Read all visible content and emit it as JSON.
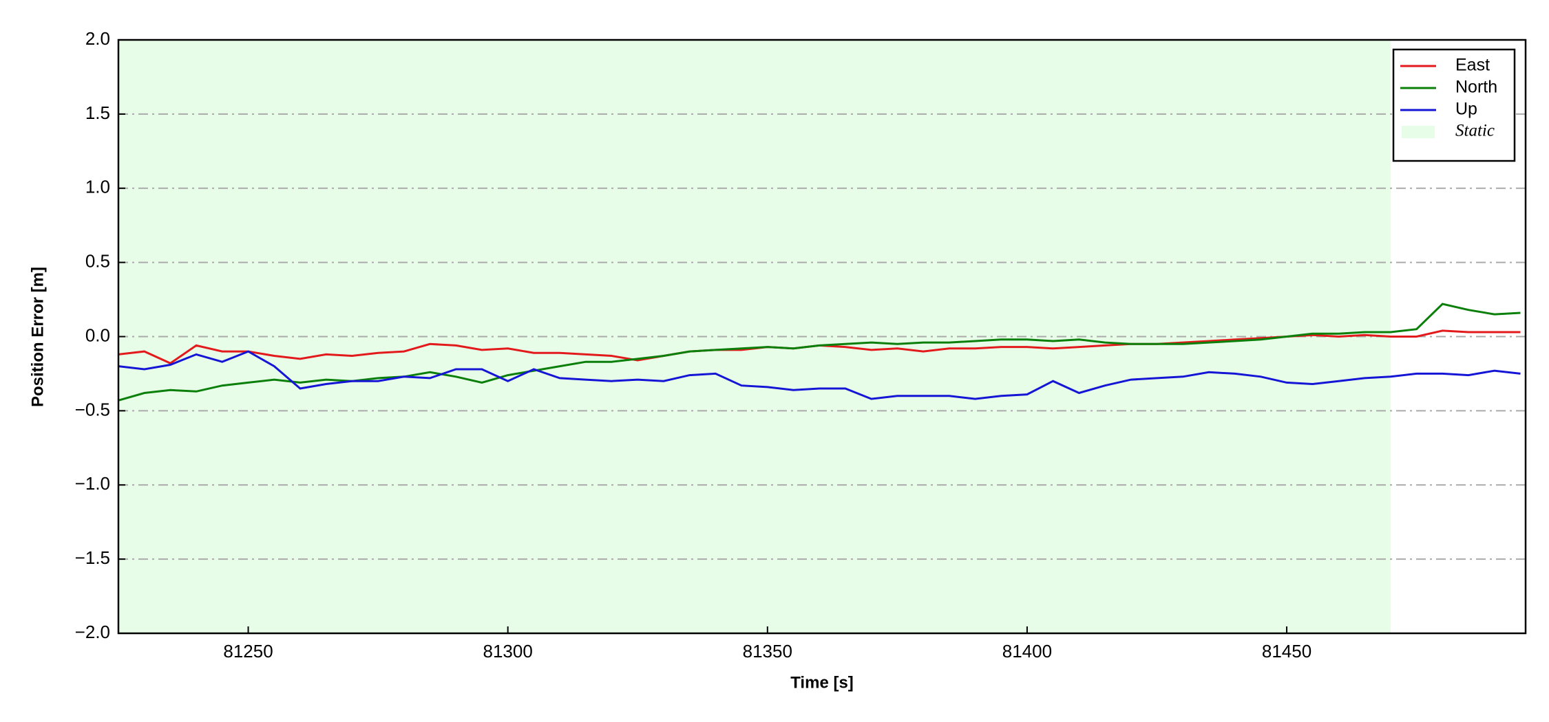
{
  "chart_data": {
    "type": "line",
    "xlabel": "Time [s]",
    "ylabel": "Position Error [m]",
    "x": [
      81225,
      81230,
      81235,
      81240,
      81245,
      81250,
      81255,
      81260,
      81265,
      81270,
      81275,
      81280,
      81285,
      81290,
      81295,
      81300,
      81305,
      81310,
      81315,
      81320,
      81325,
      81330,
      81335,
      81340,
      81345,
      81350,
      81355,
      81360,
      81365,
      81370,
      81375,
      81380,
      81385,
      81390,
      81395,
      81400,
      81405,
      81410,
      81415,
      81420,
      81425,
      81430,
      81435,
      81440,
      81445,
      81450,
      81455,
      81460,
      81465,
      81470,
      81475,
      81480,
      81485,
      81490,
      81495
    ],
    "series": [
      {
        "name": "East",
        "color": "#e31a1c",
        "values": [
          -0.12,
          -0.1,
          -0.18,
          -0.06,
          -0.1,
          -0.1,
          -0.13,
          -0.15,
          -0.12,
          -0.13,
          -0.11,
          -0.1,
          -0.05,
          -0.06,
          -0.09,
          -0.08,
          -0.11,
          -0.11,
          -0.12,
          -0.13,
          -0.16,
          -0.13,
          -0.1,
          -0.09,
          -0.09,
          -0.07,
          -0.08,
          -0.06,
          -0.07,
          -0.09,
          -0.08,
          -0.1,
          -0.08,
          -0.08,
          -0.07,
          -0.07,
          -0.08,
          -0.07,
          -0.06,
          -0.05,
          -0.05,
          -0.04,
          -0.03,
          -0.02,
          -0.01,
          0,
          0.01,
          0,
          0.01,
          0,
          0,
          0.04,
          0.03,
          0.03,
          0.03
        ]
      },
      {
        "name": "North",
        "color": "#0a7f0a",
        "values": [
          -0.43,
          -0.38,
          -0.36,
          -0.37,
          -0.33,
          -0.31,
          -0.29,
          -0.31,
          -0.29,
          -0.3,
          -0.28,
          -0.27,
          -0.24,
          -0.27,
          -0.31,
          -0.26,
          -0.23,
          -0.2,
          -0.17,
          -0.17,
          -0.15,
          -0.13,
          -0.1,
          -0.09,
          -0.08,
          -0.07,
          -0.08,
          -0.06,
          -0.05,
          -0.04,
          -0.05,
          -0.04,
          -0.04,
          -0.03,
          -0.02,
          -0.02,
          -0.03,
          -0.02,
          -0.04,
          -0.05,
          -0.05,
          -0.05,
          -0.04,
          -0.03,
          -0.02,
          0,
          0.02,
          0.02,
          0.03,
          0.03,
          0.05,
          0.22,
          0.18,
          0.15,
          0.16
        ]
      },
      {
        "name": "Up",
        "color": "#1515d6",
        "values": [
          -0.2,
          -0.22,
          -0.19,
          -0.12,
          -0.17,
          -0.1,
          -0.2,
          -0.35,
          -0.32,
          -0.3,
          -0.3,
          -0.27,
          -0.28,
          -0.22,
          -0.22,
          -0.3,
          -0.22,
          -0.28,
          -0.29,
          -0.3,
          -0.29,
          -0.3,
          -0.26,
          -0.25,
          -0.33,
          -0.34,
          -0.36,
          -0.35,
          -0.35,
          -0.42,
          -0.4,
          -0.4,
          -0.4,
          -0.42,
          -0.4,
          -0.39,
          -0.3,
          -0.38,
          -0.33,
          -0.29,
          -0.28,
          -0.27,
          -0.24,
          -0.25,
          -0.27,
          -0.31,
          -0.32,
          -0.3,
          -0.28,
          -0.27,
          -0.25,
          -0.25,
          -0.26,
          -0.23,
          -0.25
        ]
      }
    ],
    "spans": [
      {
        "name": "Static",
        "color": "#e8fde8",
        "range": [
          81225,
          81470
        ]
      }
    ],
    "xlim": [
      81225,
      81496
    ],
    "xticks": [
      81250,
      81300,
      81350,
      81400,
      81450
    ],
    "ylim": [
      -2,
      2
    ],
    "yticks": [
      {
        "value": -2,
        "label": "−2.0"
      },
      {
        "value": -1.5,
        "label": "−1.5"
      },
      {
        "value": -1,
        "label": "−1.0"
      },
      {
        "value": -0.5,
        "label": "−0.5"
      },
      {
        "value": 0,
        "label": "0.0"
      },
      {
        "value": 0.5,
        "label": "0.5"
      },
      {
        "value": 1,
        "label": "1.0"
      },
      {
        "value": 1.5,
        "label": "1.5"
      },
      {
        "value": 2,
        "label": "2.0"
      }
    ],
    "grid": true,
    "legend": "upper right"
  }
}
